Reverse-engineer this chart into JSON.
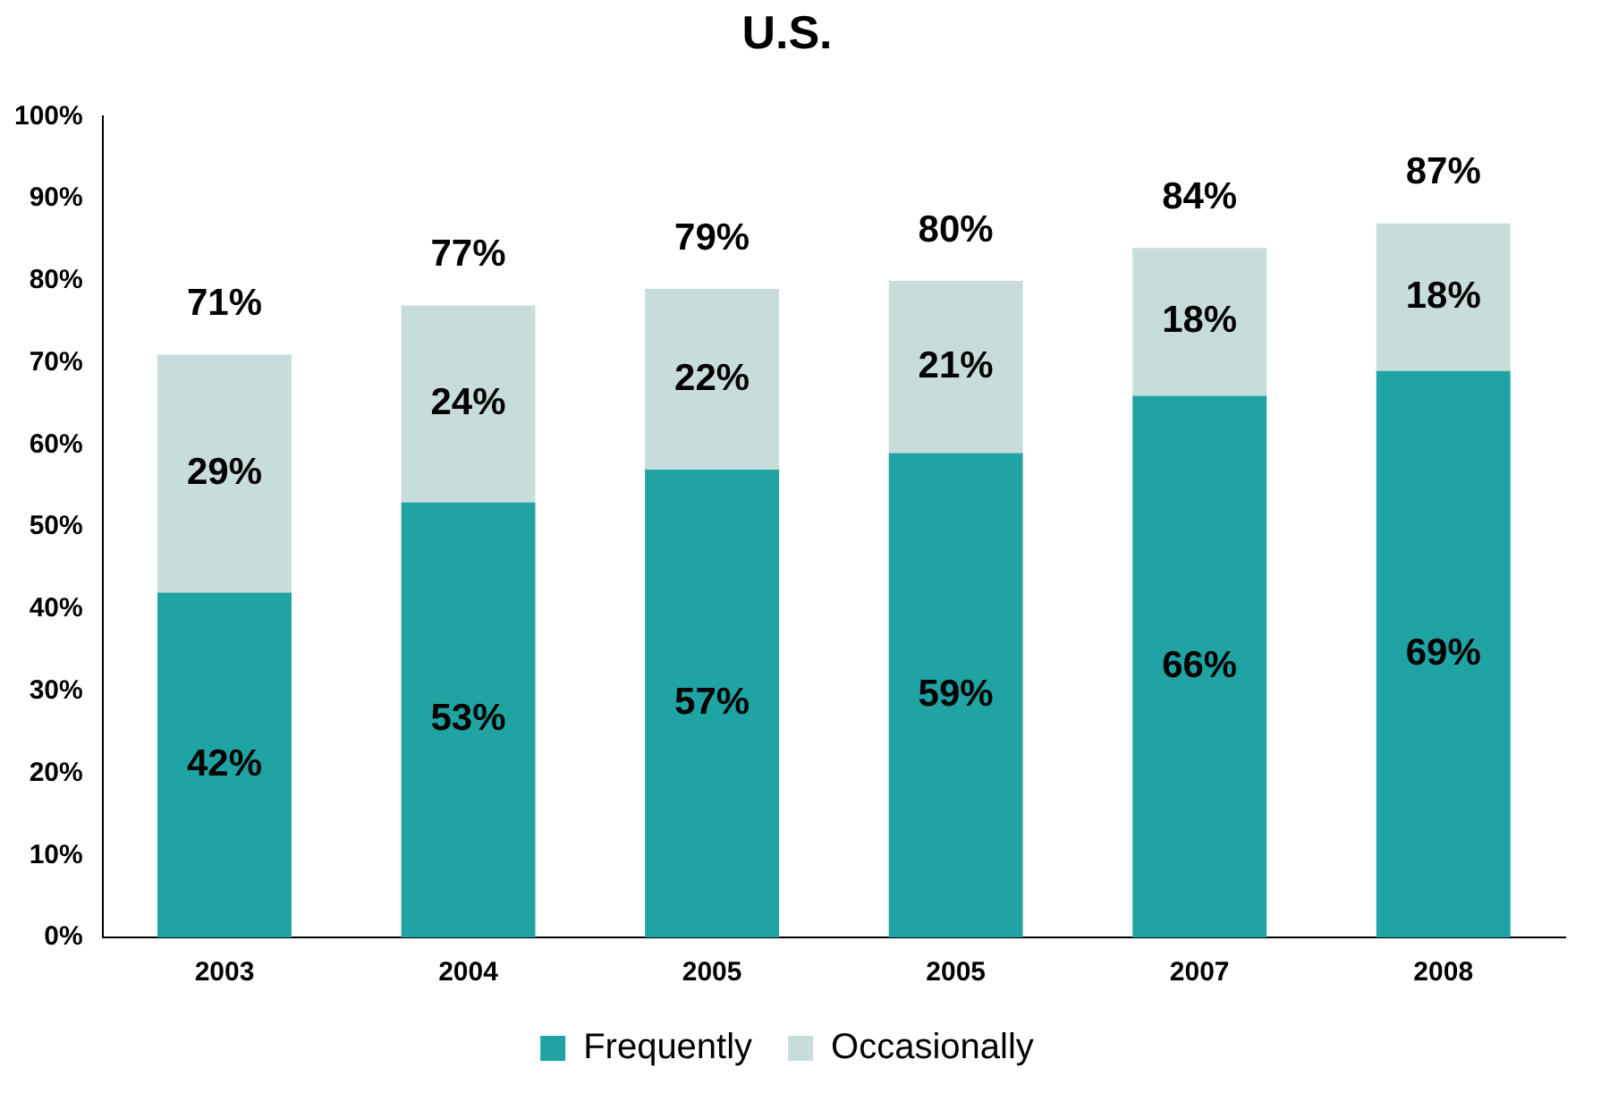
{
  "chart_data": {
    "type": "bar",
    "title": "U.S.",
    "stacked": true,
    "categories": [
      "2003",
      "2004",
      "2005",
      "2005",
      "2007",
      "2008"
    ],
    "series": [
      {
        "name": "Frequently",
        "color": "#1fa3a3",
        "values": [
          42,
          53,
          57,
          59,
          66,
          69
        ],
        "value_labels": [
          "42%",
          "53%",
          "57%",
          "59%",
          "66%",
          "69%"
        ]
      },
      {
        "name": "Occasionally",
        "color": "#c9dcdc",
        "values": [
          29,
          24,
          22,
          21,
          18,
          18
        ],
        "value_labels": [
          "29%",
          "24%",
          "22%",
          "21%",
          "18%",
          "18%"
        ]
      }
    ],
    "ylim": [
      0,
      100
    ],
    "yticks": [
      {
        "value": 0,
        "label": "0%"
      },
      {
        "value": 10,
        "label": "10%"
      },
      {
        "value": 20,
        "label": "20%"
      },
      {
        "value": 30,
        "label": "30%"
      },
      {
        "value": 40,
        "label": "40%"
      },
      {
        "value": 50,
        "label": "50%"
      },
      {
        "value": 60,
        "label": "60%"
      },
      {
        "value": 70,
        "label": "70%"
      },
      {
        "value": 80,
        "label": "80%"
      },
      {
        "value": 90,
        "label": "90%"
      },
      {
        "value": 100,
        "label": "100%"
      }
    ],
    "totals": [
      "71%",
      "77%",
      "79%",
      "80%",
      "84%",
      "87%"
    ],
    "grid": false,
    "legend": "bottom"
  }
}
